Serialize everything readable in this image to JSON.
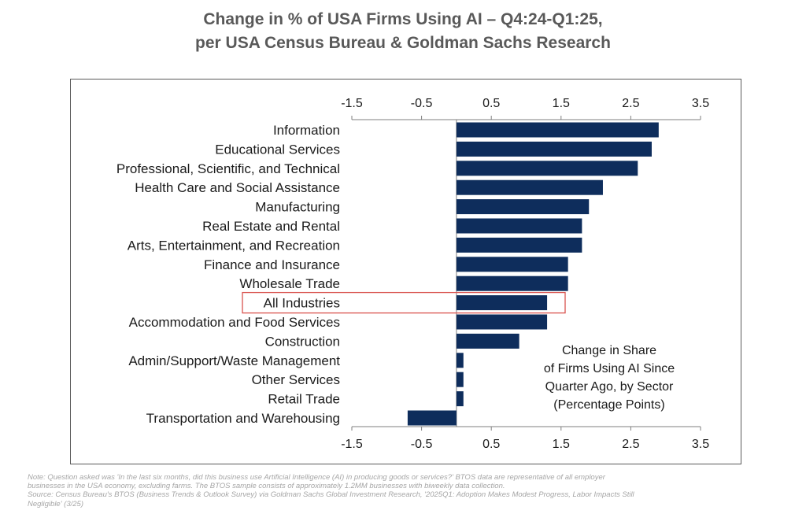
{
  "title_lines": [
    "Change in % of USA Firms Using AI – Q4:24-Q1:25,",
    "per USA Census Bureau & Goldman Sachs Research"
  ],
  "annotation_lines": [
    "Change in Share",
    "of Firms Using AI Since",
    "Quarter Ago, by Sector",
    "(Percentage Points)"
  ],
  "note_lines": [
    "Note: Question asked was 'In the last six months, did this business use Artificial Intelligence (AI) in producing goods or services?' BTOS data are representative of all employer",
    "businesses in the USA economy, excluding farms. The BTOS sample consists of approximately 1.2MM businesses with biweekly data collection.",
    "Source: Census Bureau's BTOS (Business Trends & Outlook Survey) via Goldman Sachs Global Investment Research, '2025Q1: Adoption Makes Modest Progress, Labor Impacts Still",
    "Negligible' (3/25)"
  ],
  "colors": {
    "bar": "#0e2d5c",
    "highlight_box": "#d9534f",
    "axis": "#7f7f7f",
    "text": "#1a1a1a",
    "title": "#595959",
    "note": "#a6a6a6"
  },
  "chart_data": {
    "type": "bar",
    "orientation": "horizontal",
    "categories": [
      "Information",
      "Educational Services",
      "Professional, Scientific, and Technical",
      "Health Care and Social Assistance",
      "Manufacturing",
      "Real Estate and Rental",
      "Arts, Entertainment, and Recreation",
      "Finance and Insurance",
      "Wholesale Trade",
      "All Industries",
      "Accommodation and Food Services",
      "Construction",
      "Admin/Support/Waste Management",
      "Other Services",
      "Retail Trade",
      "Transportation and Warehousing"
    ],
    "values": [
      2.9,
      2.8,
      2.6,
      2.1,
      1.9,
      1.8,
      1.8,
      1.6,
      1.6,
      1.3,
      1.3,
      0.9,
      0.1,
      0.1,
      0.1,
      -0.7
    ],
    "highlighted_category": "All Industries",
    "xlim": [
      -1.5,
      3.5
    ],
    "xticks": [
      -1.5,
      -0.5,
      0.5,
      1.5,
      2.5,
      3.5
    ],
    "xtick_labels": [
      "-1.5",
      "-0.5",
      "0.5",
      "1.5",
      "2.5",
      "3.5"
    ],
    "x_axis_position": "top and bottom",
    "grid": false
  }
}
